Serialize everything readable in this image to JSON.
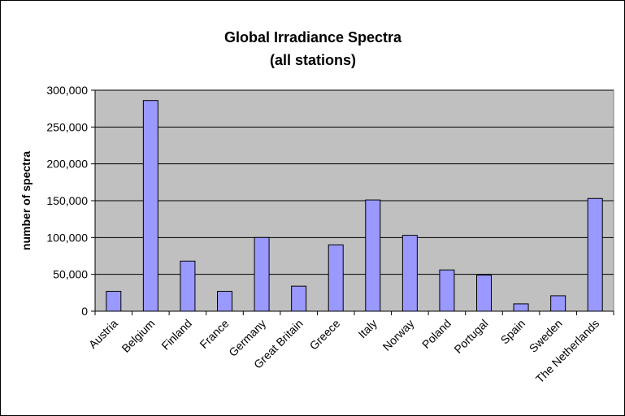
{
  "chart_data": {
    "type": "bar",
    "title": "Global Irradiance Spectra",
    "subtitle": "(all stations)",
    "xlabel": "",
    "ylabel": "number of spectra",
    "ylim": [
      0,
      300000
    ],
    "yticks": [
      0,
      50000,
      100000,
      150000,
      200000,
      250000,
      300000
    ],
    "ytick_labels": [
      "0",
      "50,000",
      "100,000",
      "150,000",
      "200,000",
      "250,000",
      "300,000"
    ],
    "categories": [
      "Austria",
      "Belgium",
      "Finland",
      "France",
      "Germany",
      "Great Britain",
      "Greece",
      "Italy",
      "Norway",
      "Poland",
      "Portugal",
      "Spain",
      "Sweden",
      "The Netherlands"
    ],
    "values": [
      27000,
      286000,
      68000,
      27000,
      100000,
      34000,
      90000,
      151000,
      103000,
      56000,
      49000,
      10000,
      21000,
      153000
    ],
    "grid": true,
    "legend": "none",
    "colors": {
      "bar_fill": "#9999FF",
      "bar_stroke": "#000000",
      "plot_background": "#C0C0C0",
      "gridline": "#000000"
    }
  }
}
